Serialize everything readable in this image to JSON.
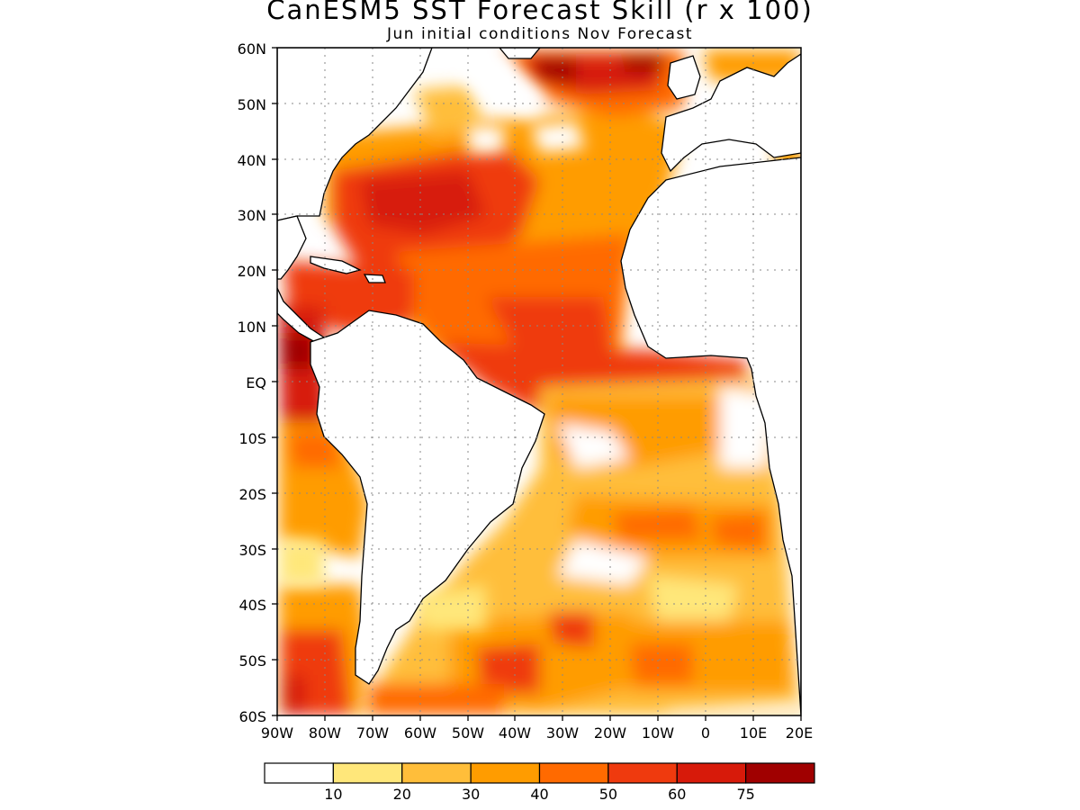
{
  "title": "CanESM5 SST Forecast Skill (r x 100)",
  "subtitle": "Jun initial conditions   Nov Forecast",
  "map": {
    "region": "Atlantic Ocean",
    "lon_range": [
      -90,
      20
    ],
    "lat_range": [
      -60,
      60
    ],
    "grid": true,
    "lat_labels": [
      "60N",
      "50N",
      "40N",
      "30N",
      "20N",
      "10N",
      "EQ",
      "10S",
      "20S",
      "30S",
      "40S",
      "50S",
      "60S"
    ],
    "lon_labels": [
      "90W",
      "80W",
      "70W",
      "60W",
      "50W",
      "40W",
      "30W",
      "20W",
      "10W",
      "0",
      "10E",
      "20E"
    ]
  },
  "colorbar": {
    "colors": [
      "#ffffff",
      "#ffe77a",
      "#ffbe3a",
      "#ff9c00",
      "#ff6a00",
      "#ef3a0e",
      "#d71a0a",
      "#a00000"
    ],
    "labels": [
      "10",
      "20",
      "30",
      "40",
      "50",
      "60",
      "75"
    ]
  }
}
